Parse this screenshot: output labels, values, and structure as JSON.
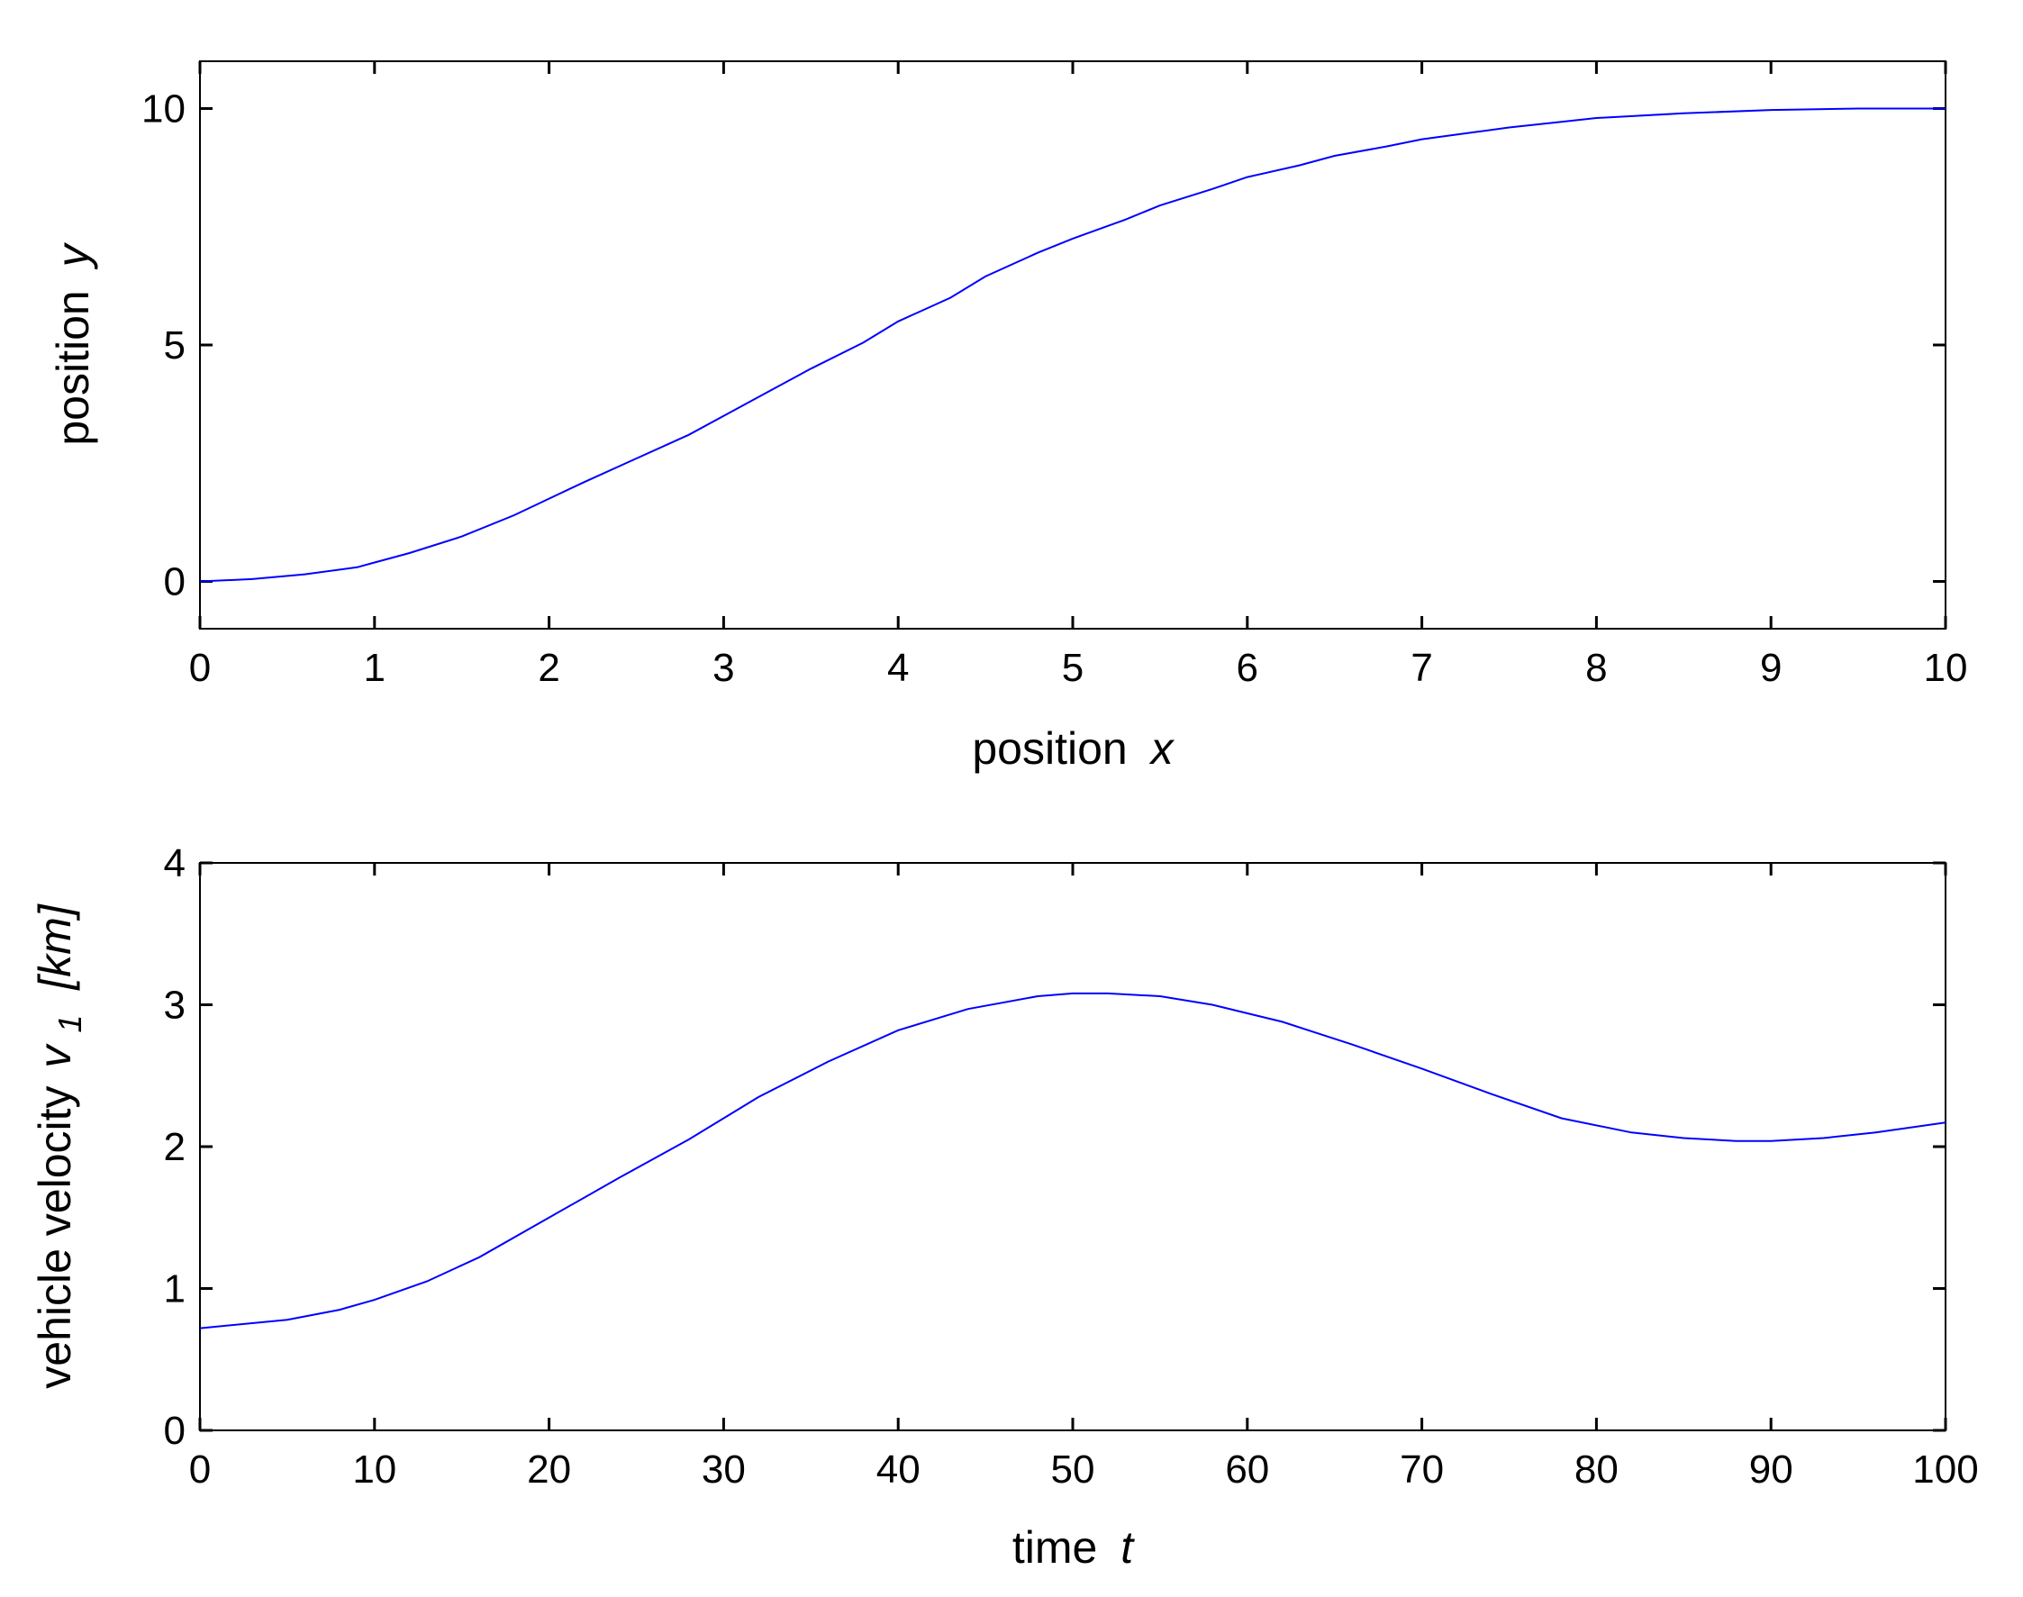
{
  "chart_data": [
    {
      "type": "line",
      "title": "",
      "xlabel": "position",
      "xlabel_var": "x",
      "ylabel": "position",
      "ylabel_var": "y",
      "xlim": [
        0,
        10
      ],
      "ylim": [
        -1,
        11
      ],
      "xticks": [
        0,
        1,
        2,
        3,
        4,
        5,
        6,
        7,
        8,
        9,
        10
      ],
      "yticks": [
        0,
        5,
        10
      ],
      "grid": false,
      "line_color": "#0000ff",
      "series": [
        {
          "x": [
            0,
            0.3,
            0.6,
            0.9,
            1.0,
            1.2,
            1.5,
            1.8,
            2.0,
            2.2,
            2.5,
            2.8,
            3.0,
            3.3,
            3.5,
            3.8,
            4.0,
            4.3,
            4.5,
            4.8,
            5.0,
            5.3,
            5.5,
            5.8,
            6.0,
            6.3,
            6.5,
            6.8,
            7.0,
            7.3,
            7.5,
            7.8,
            8.0,
            8.5,
            9.0,
            9.5,
            10.0
          ],
          "y": [
            0,
            0.05,
            0.15,
            0.3,
            0.4,
            0.6,
            0.95,
            1.4,
            1.75,
            2.1,
            2.6,
            3.1,
            3.5,
            4.1,
            4.5,
            5.05,
            5.5,
            6.0,
            6.45,
            6.95,
            7.25,
            7.65,
            7.95,
            8.3,
            8.55,
            8.8,
            9.0,
            9.2,
            9.35,
            9.5,
            9.6,
            9.72,
            9.8,
            9.9,
            9.97,
            10.0,
            10.0
          ]
        }
      ]
    },
    {
      "type": "line",
      "title": "",
      "xlabel": "time",
      "xlabel_var": "t",
      "ylabel": "vehicle velocity",
      "ylabel_var": "v",
      "ylabel_sub": "1",
      "ylabel_unit": "[km]",
      "xlim": [
        0,
        100
      ],
      "ylim": [
        0,
        4
      ],
      "xticks": [
        0,
        10,
        20,
        30,
        40,
        50,
        60,
        70,
        80,
        90,
        100
      ],
      "yticks": [
        0,
        1,
        2,
        3,
        4
      ],
      "grid": false,
      "line_color": "#0000ff",
      "series": [
        {
          "x": [
            0,
            5,
            8,
            10,
            13,
            16,
            20,
            24,
            28,
            32,
            36,
            40,
            44,
            48,
            50,
            52,
            55,
            58,
            62,
            66,
            70,
            74,
            78,
            82,
            85,
            88,
            90,
            93,
            96,
            100
          ],
          "y": [
            0.72,
            0.78,
            0.85,
            0.92,
            1.05,
            1.22,
            1.5,
            1.78,
            2.05,
            2.35,
            2.6,
            2.82,
            2.97,
            3.06,
            3.08,
            3.08,
            3.06,
            3.0,
            2.88,
            2.72,
            2.55,
            2.37,
            2.2,
            2.1,
            2.06,
            2.04,
            2.04,
            2.06,
            2.1,
            2.17
          ]
        }
      ]
    }
  ]
}
